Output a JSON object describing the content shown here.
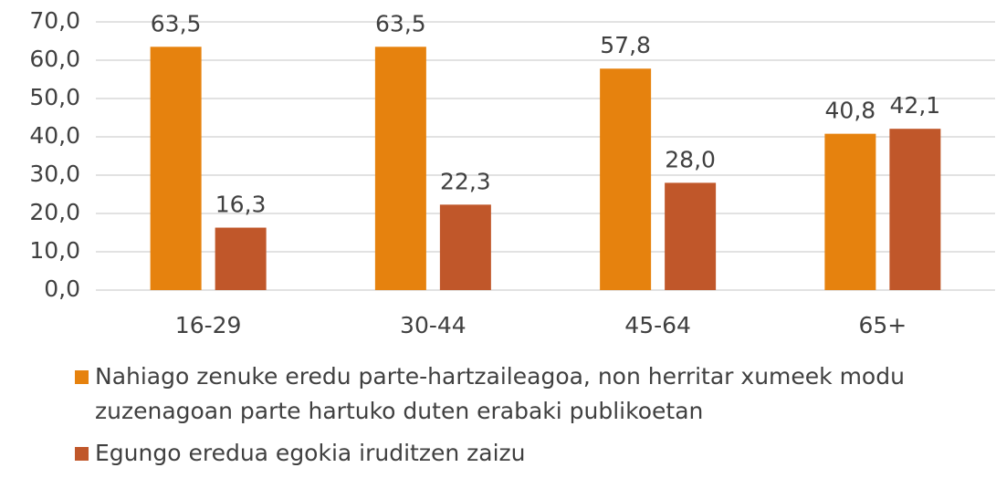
{
  "chart_data": {
    "type": "bar",
    "categories": [
      "16-29",
      "30-44",
      "45-64",
      "65+"
    ],
    "series": [
      {
        "name": "Nahiago zenuke eredu parte-hartzaileagoa, non herritar xumeek modu zuzenagoan parte hartuko duten erabaki publikoetan",
        "color": "#e6820e",
        "values": [
          63.5,
          63.5,
          57.8,
          40.8
        ],
        "value_labels": [
          "63,5",
          "63,5",
          "57,8",
          "40,8"
        ]
      },
      {
        "name": "Egungo eredua egokia iruditzen zaizu",
        "color": "#c0572a",
        "values": [
          16.3,
          22.3,
          28.0,
          42.1
        ],
        "value_labels": [
          "16,3",
          "22,3",
          "28,0",
          "42,1"
        ]
      }
    ],
    "ylim": [
      0,
      70
    ],
    "yticks": [
      {
        "value": 0,
        "label": "0,0"
      },
      {
        "value": 10,
        "label": "10,0"
      },
      {
        "value": 20,
        "label": "20,0"
      },
      {
        "value": 30,
        "label": "30,0"
      },
      {
        "value": 40,
        "label": "40,0"
      },
      {
        "value": 50,
        "label": "50,0"
      },
      {
        "value": 60,
        "label": "60,0"
      },
      {
        "value": 70,
        "label": "70,0"
      }
    ],
    "grid": true,
    "legend": "bottom"
  }
}
